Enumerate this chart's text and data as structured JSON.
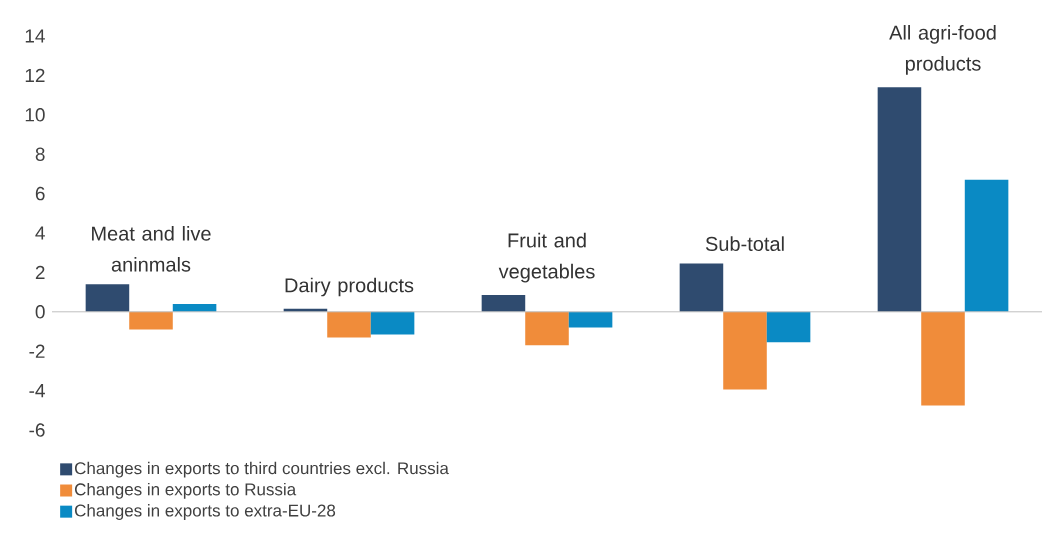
{
  "chart_data": {
    "type": "bar",
    "categories": [
      "Meat and live aninmals",
      "Dairy products",
      "Fruit and vegetables",
      "Sub-total",
      "All agri-food products"
    ],
    "series": [
      {
        "name": "Changes in exports to third countries excl. Russia",
        "color": "#2f4b6f",
        "values": [
          1.4,
          0.15,
          0.85,
          2.45,
          11.4
        ]
      },
      {
        "name": "Changes in exports to Russia",
        "color": "#f08c3a",
        "values": [
          -0.9,
          -1.3,
          -1.7,
          -3.95,
          -4.75
        ]
      },
      {
        "name": "Changes in exports to extra-EU-28",
        "color": "#0a8ac4",
        "values": [
          0.4,
          -1.15,
          -0.8,
          -1.55,
          6.7
        ]
      }
    ],
    "ylim": [
      -6,
      14
    ],
    "yticks": [
      -6,
      -4,
      -2,
      0,
      2,
      4,
      6,
      8,
      10,
      12,
      14
    ],
    "legend": "bottom"
  }
}
